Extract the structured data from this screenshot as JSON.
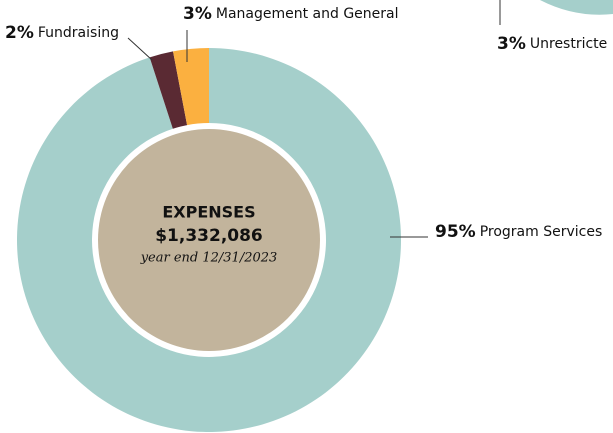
{
  "chart_data": {
    "type": "donut",
    "title": "EXPENSES",
    "total": "$1,332,086",
    "subtitle": "year end 12/31/2023",
    "categories": [
      "Program Services",
      "Fundraising",
      "Management and General"
    ],
    "values": [
      95,
      2,
      3
    ],
    "value_labels": [
      "95%",
      "2%",
      "3%"
    ],
    "colors": [
      "#a5cfcb",
      "#5a2a33",
      "#fbb040"
    ]
  },
  "cropped_chart": {
    "value_label": "3%",
    "label": "Unrestricte"
  }
}
